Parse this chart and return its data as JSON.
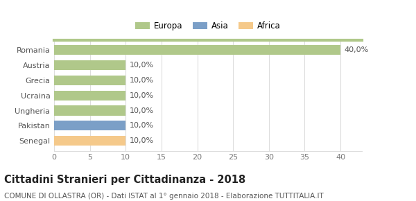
{
  "categories": [
    "Senegal",
    "Pakistan",
    "Ungheria",
    "Ucraina",
    "Grecia",
    "Austria",
    "Romania"
  ],
  "values": [
    10.0,
    10.0,
    10.0,
    10.0,
    10.0,
    10.0,
    40.0
  ],
  "colors": [
    "#f5c98a",
    "#7b9fc7",
    "#b0c88a",
    "#b0c88a",
    "#b0c88a",
    "#b0c88a",
    "#b0c88a"
  ],
  "labels": [
    "10,0%",
    "10,0%",
    "10,0%",
    "10,0%",
    "10,0%",
    "10,0%",
    "40,0%"
  ],
  "xlim": [
    0,
    43
  ],
  "xticks": [
    0,
    5,
    10,
    15,
    20,
    25,
    30,
    35,
    40
  ],
  "legend": [
    {
      "label": "Europa",
      "color": "#b0c88a"
    },
    {
      "label": "Asia",
      "color": "#7b9fc7"
    },
    {
      "label": "Africa",
      "color": "#f5c98a"
    }
  ],
  "title": "Cittadini Stranieri per Cittadinanza - 2018",
  "subtitle": "COMUNE DI OLLASTRA (OR) - Dati ISTAT al 1° gennaio 2018 - Elaborazione TUTTITALIA.IT",
  "background_color": "#ffffff",
  "bar_height": 0.65,
  "value_label_fontsize": 8,
  "axis_label_fontsize": 8,
  "title_fontsize": 10.5,
  "subtitle_fontsize": 7.5,
  "grid_color": "#dddddd",
  "text_color_labels": "#555555",
  "text_color_yticks": "#555555",
  "text_color_xticks": "#777777"
}
